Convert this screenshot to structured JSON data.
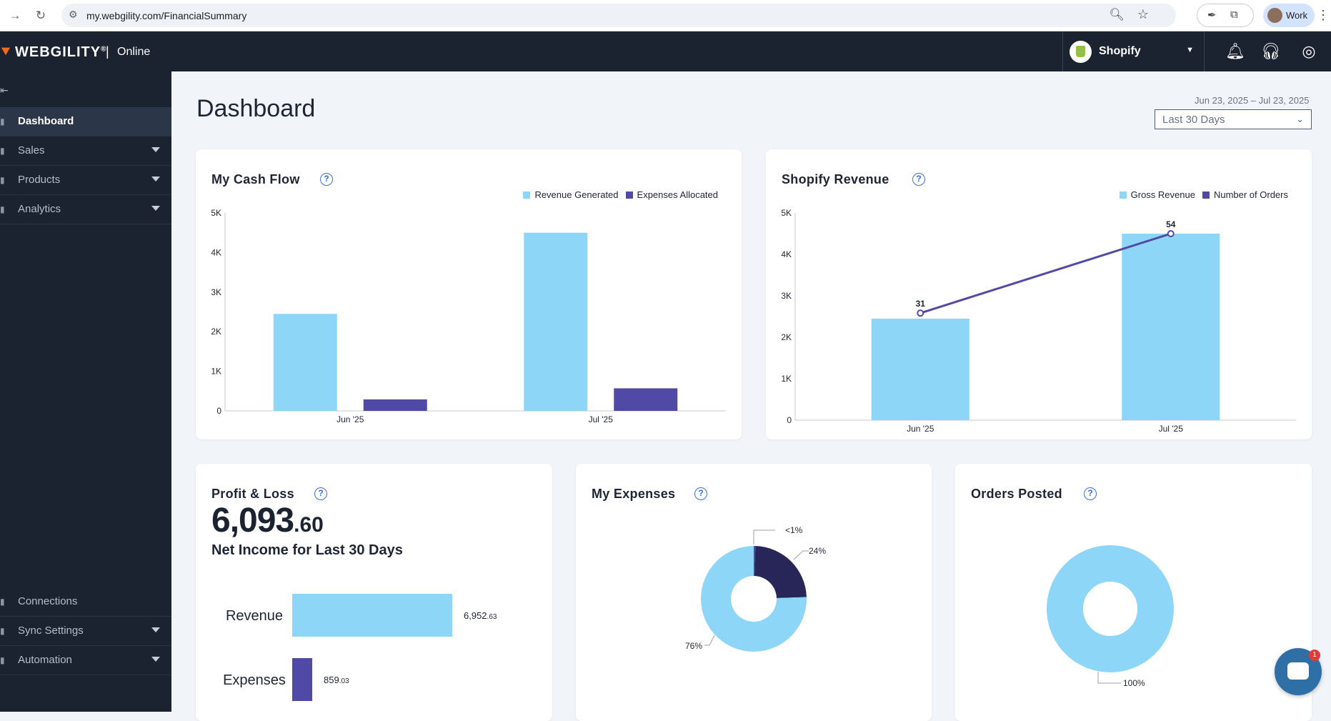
{
  "browser": {
    "url": "my.webgility.com/FinancialSummary",
    "profile_label": "Work"
  },
  "header": {
    "brand": "WEBGILITY",
    "brand_mark": "®",
    "separator": "|",
    "subtitle": "Online",
    "store": "Shopify"
  },
  "sidebar": {
    "top_items": [
      {
        "label": "Dashboard",
        "active": true,
        "has_caret": false
      },
      {
        "label": "Sales",
        "active": false,
        "has_caret": true
      },
      {
        "label": "Products",
        "active": false,
        "has_caret": true
      },
      {
        "label": "Analytics",
        "active": false,
        "has_caret": true
      }
    ],
    "bottom_items": [
      {
        "label": "Connections",
        "has_caret": false
      },
      {
        "label": "Sync Settings",
        "has_caret": true
      },
      {
        "label": "Automation",
        "has_caret": true
      }
    ]
  },
  "main": {
    "title": "Dashboard",
    "date_range": "Jun 23, 2025 – Jul 23, 2025",
    "range_select": "Last 30 Days"
  },
  "cards": {
    "cash_flow": {
      "title": "My Cash Flow",
      "help": "?"
    },
    "shopify_revenue": {
      "title": "Shopify Revenue",
      "help": "?"
    },
    "profit_loss": {
      "title": "Profit & Loss",
      "help": "?",
      "amount_whole": "6,093",
      "amount_cents": ".60",
      "caption": "Net Income for Last 30 Days"
    },
    "expenses": {
      "title": "My Expenses",
      "help": "?"
    },
    "orders_posted": {
      "title": "Orders Posted",
      "help": "?"
    }
  },
  "colors": {
    "light_blue": "#8dd6f8",
    "purple": "#5149a6",
    "navy": "#282659",
    "brand_orange": "#f26a21"
  },
  "chat": {
    "badge": "1"
  },
  "chart_data": [
    {
      "id": "cash_flow",
      "type": "bar",
      "categories": [
        "Jun '25",
        "Jul '25"
      ],
      "series": [
        {
          "name": "Revenue Generated",
          "values": [
            2450,
            4500
          ],
          "color": "#8dd6f8"
        },
        {
          "name": "Expenses Allocated",
          "values": [
            290,
            570
          ],
          "color": "#5149a6"
        }
      ],
      "yticks": [
        "0",
        "1K",
        "2K",
        "3K",
        "4K",
        "5K"
      ],
      "ylim": [
        0,
        5000
      ],
      "legend": "top-right"
    },
    {
      "id": "shopify_revenue",
      "type": "bar",
      "categories": [
        "Jun '25",
        "Jul '25"
      ],
      "series": [
        {
          "name": "Gross Revenue",
          "values": [
            2450,
            4500
          ],
          "color": "#8dd6f8"
        },
        {
          "name": "Number of Orders",
          "values": [
            31,
            54
          ],
          "labels": [
            "31",
            "54"
          ],
          "color": "#5149a6",
          "render": "line"
        }
      ],
      "yticks": [
        "0",
        "1K",
        "2K",
        "3K",
        "4K",
        "5K"
      ],
      "ylim": [
        0,
        5000
      ],
      "legend": "top-right"
    },
    {
      "id": "profit_loss",
      "type": "bar",
      "orientation": "horizontal",
      "categories": [
        "Revenue",
        "Expenses"
      ],
      "values": [
        6952.63,
        859.03
      ],
      "value_labels": [
        {
          "main": "6,952",
          "small": ".63"
        },
        {
          "main": "859",
          "small": ".03"
        }
      ],
      "colors": [
        "#8dd6f8",
        "#5149a6"
      ]
    },
    {
      "id": "expenses",
      "type": "pie",
      "donut": true,
      "slices": [
        {
          "label": "<1%",
          "value": 0.5,
          "color": "#5149a6"
        },
        {
          "label": "24%",
          "value": 24,
          "color": "#282659"
        },
        {
          "label": "76%",
          "value": 75.5,
          "color": "#8dd6f8"
        }
      ]
    },
    {
      "id": "orders_posted",
      "type": "pie",
      "donut": true,
      "slices": [
        {
          "label": "100%",
          "value": 100,
          "color": "#8dd6f8"
        }
      ]
    }
  ]
}
